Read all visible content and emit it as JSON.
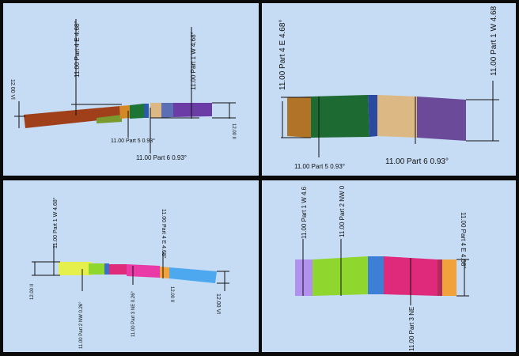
{
  "viewports": {
    "top_left": {
      "labels": {
        "part4": "11.00 Part 4 E 4.68°",
        "part1": "11.00 Part 1 W 4.68°",
        "vl_left": "12.00 Vl",
        "vl_right": "12.00 Il",
        "part5": "11.00 Part 5 0.93°",
        "part6": "11.00 Part 6 0.93°"
      }
    },
    "top_right": {
      "labels": {
        "part4": "11.00 Part 4 E 4.68°",
        "part1": "11.00 Part 1 W 4.68",
        "part5": "11.00 Part 5 0.93°",
        "part6": "11.00 Part 6 0.93°"
      }
    },
    "bottom_left": {
      "labels": {
        "part1": "11.00 Part 1 W 4.68°",
        "part4": "11.00 Part 4 E 4.68°",
        "ii_left": "12.00 II",
        "part2": "11.00 Part 2 NW 0.26°",
        "part3": "11.00 Part 3 NE 0.26°",
        "ii_small": "12.00 II",
        "vi": "12.00 VI"
      }
    },
    "bottom_right": {
      "labels": {
        "part1": "11.00 Part 1 W 4.6",
        "part2": "11.00 Part 2 NW 0",
        "part4": "11.00 Part 4 E 4.68°",
        "part3": "11.00 Part 3 NE"
      }
    }
  },
  "colors": {
    "background": "#c5dcf4",
    "brown": "#a0401a",
    "orange": "#d38a26",
    "green": "#1d7535",
    "blue": "#2a5aa8",
    "tan": "#dcb984",
    "purple": "#6b3ba6",
    "lavender": "#b190ee",
    "lime": "#8fd62f",
    "pink": "#df2a7c",
    "sky": "#4da8ef",
    "yellow": "#e6f04c"
  }
}
